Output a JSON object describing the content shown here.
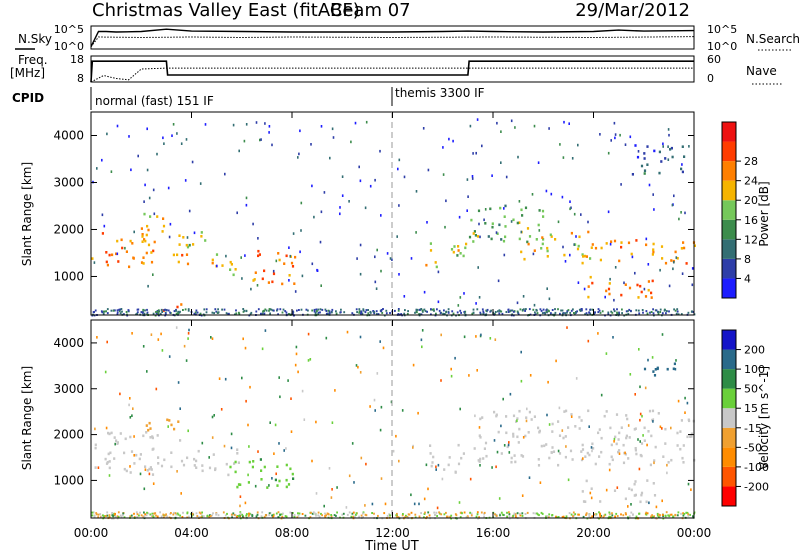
{
  "header": {
    "title": "Christmas Valley East (fitACF)",
    "beam": "Beam 07",
    "date": "29/Mar/2012"
  },
  "sky_panel": {
    "left_label": "N.Sky",
    "right_label": "N.Search",
    "left_ticks": [
      "10^5",
      "10^0"
    ],
    "right_ticks": [
      "10^5",
      "10^0"
    ]
  },
  "freq_panel": {
    "left_label_1": "Freq.",
    "left_label_2": "[MHz]",
    "right_label": "Nave",
    "left_ticks": [
      "18",
      "8"
    ],
    "right_ticks": [
      "60",
      "0"
    ]
  },
  "cpid": {
    "label": "CPID",
    "modes": [
      "normal (fast) 151 IF",
      "themis 3300 IF"
    ]
  },
  "colors": {
    "power_scale": [
      "#1d1dff",
      "#2e3ea8",
      "#336e73",
      "#3c8c4c",
      "#75c85a",
      "#f5b400",
      "#ff7f00",
      "#ff3c00",
      "#ee1111"
    ],
    "velocity_scale": [
      "#ff0000",
      "#ff5500",
      "#ff8c00",
      "#f0a030",
      "#c8c8c8",
      "#6ad03a",
      "#2e8c46",
      "#2a6a8a",
      "#1414c8"
    ],
    "ground_scatter": "#c8c8c8"
  },
  "chart_data": [
    {
      "type": "line",
      "title": "N.Sky / N.Search",
      "x_range_hours": [
        0,
        24
      ],
      "series": [
        {
          "name": "N.Sky",
          "x": [
            0,
            0.3,
            0.6,
            1,
            2,
            3,
            4,
            6,
            8,
            10,
            12,
            14,
            15,
            16,
            18,
            20,
            21,
            22,
            24
          ],
          "values": [
            0.5,
            3.8,
            3.8,
            3.7,
            3.8,
            4.3,
            3.9,
            3.8,
            3.7,
            3.7,
            3.7,
            3.8,
            3.9,
            3.8,
            3.7,
            3.8,
            4.1,
            3.9,
            4.0
          ]
        },
        {
          "name": "N.Search",
          "x": [
            0,
            0.3,
            2,
            4,
            6,
            8,
            12,
            16,
            20,
            24
          ],
          "values": [
            0.5,
            2.6,
            2.5,
            2.6,
            2.5,
            2.6,
            2.5,
            2.6,
            2.5,
            2.7
          ]
        }
      ],
      "ylim_left_log10": [
        0,
        5
      ]
    },
    {
      "type": "line",
      "title": "Freq. / Nave",
      "x_range_hours": [
        0,
        24
      ],
      "series": [
        {
          "name": "Freq. [MHz]",
          "x": [
            0,
            0.05,
            3,
            3.05,
            15,
            15.05,
            24
          ],
          "values": [
            8,
            16,
            16,
            10.7,
            10.7,
            16,
            16
          ]
        },
        {
          "name": "Nave",
          "x": [
            0,
            0.5,
            1,
            1.5,
            2,
            3,
            6,
            12,
            15,
            18,
            24
          ],
          "values": [
            0,
            15,
            8,
            5,
            30,
            32,
            32,
            32,
            32,
            32,
            32
          ]
        }
      ],
      "ylim_left": [
        8,
        18
      ],
      "ylim_right": [
        0,
        60
      ]
    },
    {
      "type": "heatmap",
      "title": "Power",
      "ylabel": "Slant Range [km]",
      "y_ticks": [
        "1000",
        "2000",
        "3000",
        "4000"
      ],
      "yrange_km": [
        180,
        4500
      ],
      "x_range_hours": [
        0,
        24
      ],
      "colorbar": {
        "label": "Power [dB]",
        "ticks": [
          "4",
          "8",
          "12",
          "16",
          "20",
          "24",
          "28"
        ],
        "range": [
          0,
          32
        ]
      },
      "regions": [
        {
          "h0": 0.0,
          "h1": 2.5,
          "r0": 1150,
          "r1": 2050,
          "db": 26
        },
        {
          "h0": 2.0,
          "h1": 3.0,
          "r0": 1700,
          "r1": 2400,
          "db": 22
        },
        {
          "h0": 3.0,
          "h1": 4.2,
          "r0": 1250,
          "r1": 1600,
          "db": 24
        },
        {
          "h0": 3.3,
          "h1": 4.8,
          "r0": 1650,
          "r1": 2100,
          "db": 18
        },
        {
          "h0": 4.4,
          "h1": 6.0,
          "r0": 1050,
          "r1": 1500,
          "db": 22
        },
        {
          "h0": 6.0,
          "h1": 8.1,
          "r0": 850,
          "r1": 1600,
          "db": 26
        },
        {
          "h0": 2.8,
          "h1": 4.0,
          "r0": 250,
          "r1": 450,
          "db": 28
        },
        {
          "h0": 13.3,
          "h1": 14.9,
          "r0": 1200,
          "r1": 1850,
          "db": 20
        },
        {
          "h0": 15.0,
          "h1": 18.0,
          "r0": 1750,
          "r1": 2600,
          "db": 16
        },
        {
          "h0": 17.0,
          "h1": 20.0,
          "r0": 1300,
          "r1": 2000,
          "db": 22
        },
        {
          "h0": 19.5,
          "h1": 24.0,
          "r0": 1300,
          "r1": 1800,
          "db": 24
        },
        {
          "h0": 19.5,
          "h1": 22.5,
          "r0": 550,
          "r1": 1050,
          "db": 26
        },
        {
          "h0": 21.5,
          "h1": 23.7,
          "r0": 3200,
          "r1": 3900,
          "db": 8
        }
      ]
    },
    {
      "type": "heatmap",
      "title": "Velocity",
      "ylabel": "Slant Range [km]",
      "xlabel": "Time UT",
      "x_ticks": [
        "00:00",
        "04:00",
        "08:00",
        "12:00",
        "16:00",
        "20:00",
        "00:00"
      ],
      "y_ticks": [
        "1000",
        "2000",
        "3000",
        "4000"
      ],
      "yrange_km": [
        180,
        4500
      ],
      "x_range_hours": [
        0,
        24
      ],
      "colorbar": {
        "label": "Velocity [m s^-1]",
        "ticks": [
          "-200",
          "-100",
          "-50",
          "-15",
          "15",
          "50",
          "100",
          "200"
        ],
        "range": [
          -250,
          250
        ]
      },
      "regions": [
        {
          "h0": 0.0,
          "h1": 4.0,
          "r0": 1150,
          "r1": 2100,
          "v": 0
        },
        {
          "h0": 4.0,
          "h1": 6.0,
          "r0": 1100,
          "r1": 1700,
          "v": 0
        },
        {
          "h0": 5.5,
          "h1": 8.1,
          "r0": 850,
          "r1": 1550,
          "v": 40
        },
        {
          "h0": 2.0,
          "h1": 3.5,
          "r0": 2050,
          "r1": 2450,
          "v": -40
        },
        {
          "h0": 13.3,
          "h1": 14.9,
          "r0": 1200,
          "r1": 1800,
          "v": 0
        },
        {
          "h0": 15.0,
          "h1": 24.0,
          "r0": 1350,
          "r1": 2550,
          "v": 0
        },
        {
          "h0": 19.5,
          "h1": 22.5,
          "r0": 550,
          "r1": 1050,
          "v": 0
        },
        {
          "h0": 22.0,
          "h1": 23.5,
          "r0": 3200,
          "r1": 3600,
          "v": 150
        }
      ]
    }
  ]
}
